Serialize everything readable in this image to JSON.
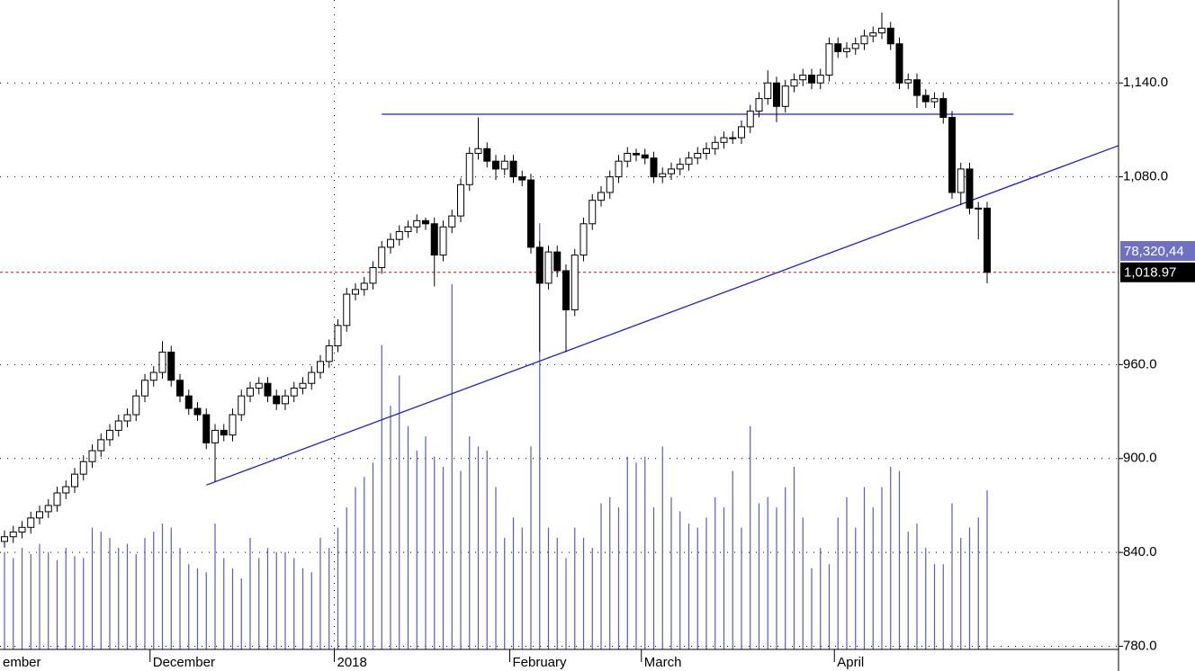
{
  "chart_data": {
    "type": "candlestick",
    "categories": [
      "ember",
      null,
      null,
      null,
      null,
      null,
      null,
      null,
      null,
      null,
      null,
      null,
      null,
      null,
      null,
      null,
      null,
      "December",
      null,
      null,
      null,
      null,
      null,
      null,
      null,
      null,
      null,
      null,
      null,
      null,
      null,
      null,
      null,
      null,
      null,
      null,
      null,
      null,
      "2018",
      null,
      null,
      null,
      null,
      null,
      null,
      null,
      null,
      null,
      null,
      null,
      null,
      null,
      null,
      null,
      null,
      null,
      null,
      null,
      "February",
      null,
      null,
      null,
      null,
      null,
      null,
      null,
      null,
      null,
      null,
      null,
      null,
      null,
      null,
      "March",
      null,
      null,
      null,
      null,
      null,
      null,
      null,
      null,
      null,
      null,
      null,
      null,
      null,
      null,
      null,
      null,
      null,
      null,
      null,
      null,
      null,
      "April",
      null,
      null,
      null,
      null,
      null,
      null,
      null,
      null,
      null,
      null,
      null,
      null,
      null,
      null,
      null,
      null,
      null
    ],
    "open": [
      847,
      850,
      853,
      856,
      862,
      866,
      870,
      878,
      882,
      890,
      898,
      905,
      912,
      918,
      924,
      928,
      940,
      950,
      955,
      968,
      950,
      940,
      932,
      928,
      910,
      918,
      915,
      928,
      940,
      945,
      948,
      940,
      935,
      940,
      945,
      948,
      955,
      962,
      972,
      985,
      1005,
      1008,
      1012,
      1022,
      1035,
      1040,
      1045,
      1048,
      1052,
      1050,
      1030,
      1048,
      1055,
      1075,
      1095,
      1098,
      1090,
      1085,
      1090,
      1080,
      1078,
      1035,
      1012,
      1032,
      1020,
      995,
      1030,
      1050,
      1065,
      1070,
      1080,
      1090,
      1095,
      1094,
      1092,
      1080,
      1082,
      1085,
      1088,
      1092,
      1095,
      1098,
      1102,
      1105,
      1105,
      1112,
      1122,
      1130,
      1140,
      1125,
      1138,
      1142,
      1145,
      1140,
      1145,
      1165,
      1160,
      1162,
      1165,
      1170,
      1172,
      1175,
      1165,
      1140,
      1142,
      1132,
      1128,
      1130,
      1118,
      1070,
      1085,
      1060,
      1060
    ],
    "high": [
      854,
      857,
      860,
      866,
      870,
      874,
      882,
      886,
      894,
      902,
      909,
      916,
      922,
      928,
      932,
      944,
      954,
      959,
      975,
      972,
      954,
      944,
      936,
      932,
      922,
      922,
      932,
      944,
      949,
      952,
      952,
      944,
      944,
      949,
      952,
      959,
      966,
      976,
      989,
      1009,
      1012,
      1016,
      1026,
      1039,
      1044,
      1049,
      1052,
      1056,
      1054,
      1054,
      1052,
      1059,
      1079,
      1099,
      1118,
      1102,
      1094,
      1094,
      1094,
      1084,
      1082,
      1039,
      1036,
      1036,
      1024,
      1034,
      1054,
      1069,
      1074,
      1084,
      1094,
      1099,
      1098,
      1098,
      1096,
      1086,
      1089,
      1092,
      1096,
      1099,
      1102,
      1106,
      1109,
      1109,
      1116,
      1126,
      1134,
      1148,
      1144,
      1142,
      1146,
      1149,
      1149,
      1149,
      1169,
      1169,
      1166,
      1169,
      1174,
      1176,
      1185,
      1179,
      1169,
      1146,
      1146,
      1136,
      1134,
      1134,
      1122,
      1089,
      1089,
      1064,
      1064
    ],
    "low": [
      843,
      846,
      849,
      852,
      858,
      862,
      866,
      874,
      878,
      886,
      894,
      901,
      908,
      914,
      920,
      924,
      936,
      946,
      951,
      946,
      936,
      928,
      924,
      906,
      885,
      911,
      911,
      924,
      936,
      941,
      936,
      931,
      931,
      936,
      941,
      944,
      951,
      958,
      968,
      981,
      1001,
      1004,
      1008,
      1018,
      1031,
      1036,
      1041,
      1044,
      1046,
      1010,
      1026,
      1044,
      1051,
      1071,
      1091,
      1086,
      1078,
      1081,
      1076,
      1074,
      1031,
      968,
      1008,
      1016,
      968,
      991,
      1026,
      1046,
      1061,
      1066,
      1076,
      1086,
      1090,
      1088,
      1076,
      1076,
      1078,
      1081,
      1084,
      1088,
      1091,
      1094,
      1098,
      1101,
      1101,
      1108,
      1118,
      1126,
      1115,
      1121,
      1134,
      1138,
      1136,
      1136,
      1141,
      1156,
      1156,
      1158,
      1161,
      1166,
      1168,
      1161,
      1136,
      1136,
      1124,
      1124,
      1124,
      1114,
      1066,
      1062,
      1056,
      1040,
      1012
    ],
    "close": [
      850,
      853,
      856,
      862,
      866,
      870,
      878,
      882,
      890,
      898,
      905,
      912,
      918,
      924,
      928,
      940,
      950,
      955,
      968,
      950,
      940,
      932,
      928,
      910,
      918,
      915,
      928,
      940,
      945,
      948,
      940,
      935,
      940,
      945,
      948,
      955,
      962,
      972,
      985,
      1005,
      1008,
      1012,
      1022,
      1035,
      1040,
      1045,
      1048,
      1052,
      1050,
      1030,
      1048,
      1055,
      1075,
      1095,
      1098,
      1090,
      1085,
      1090,
      1080,
      1078,
      1035,
      1012,
      1032,
      1020,
      995,
      1030,
      1050,
      1065,
      1070,
      1080,
      1090,
      1095,
      1094,
      1092,
      1080,
      1082,
      1085,
      1088,
      1092,
      1095,
      1098,
      1102,
      1105,
      1105,
      1112,
      1122,
      1130,
      1140,
      1125,
      1138,
      1142,
      1145,
      1140,
      1145,
      1165,
      1160,
      1162,
      1165,
      1170,
      1172,
      1175,
      1165,
      1140,
      1142,
      1132,
      1128,
      1130,
      1118,
      1070,
      1085,
      1060,
      1060,
      1018.97
    ],
    "volume": [
      48,
      45,
      50,
      47,
      52,
      48,
      44,
      50,
      46,
      45,
      60,
      58,
      55,
      50,
      52,
      47,
      55,
      58,
      62,
      60,
      50,
      42,
      40,
      38,
      62,
      45,
      40,
      35,
      55,
      45,
      50,
      48,
      48,
      45,
      40,
      38,
      55,
      50,
      60,
      70,
      80,
      85,
      92,
      150,
      120,
      135,
      110,
      98,
      105,
      95,
      90,
      180,
      88,
      105,
      100,
      98,
      80,
      55,
      65,
      60,
      100,
      210,
      60,
      55,
      45,
      60,
      55,
      50,
      72,
      75,
      70,
      95,
      92,
      95,
      70,
      100,
      75,
      68,
      62,
      60,
      65,
      75,
      70,
      88,
      60,
      110,
      72,
      75,
      70,
      80,
      90,
      65,
      40,
      50,
      42,
      65,
      75,
      60,
      80,
      70,
      80,
      90,
      88,
      58,
      62,
      50,
      42,
      42,
      72,
      55,
      60,
      65,
      78.32044
    ],
    "volume_lim": [
      0,
      320
    ],
    "last_close": {
      "value": 1018.97,
      "label": "1,018.97"
    },
    "last_volume": {
      "value": 78.32044,
      "label": "78,320,44"
    },
    "trendlines": [
      {
        "x": [
          23,
          127
        ],
        "y": [
          883,
          1100
        ],
        "color": "#1f1fd0"
      },
      {
        "x": [
          43,
          115
        ],
        "y": [
          1120,
          1120
        ],
        "color": "#1f1fd0"
      }
    ],
    "up_color": "#ffffff",
    "down_color": "#000000",
    "volume_color": "#5a5ac8",
    "last_line_color": "#d01010",
    "ylim": [
      778,
      1193
    ],
    "yticks": [
      {
        "value": 780,
        "label": "780.0"
      },
      {
        "value": 840,
        "label": "840.0"
      },
      {
        "value": 900,
        "label": "900.0"
      },
      {
        "value": 960,
        "label": "960.0"
      },
      {
        "value": 1080,
        "label": "1,080.0"
      },
      {
        "value": 1140,
        "label": "1,140.0"
      }
    ],
    "grid": true
  }
}
